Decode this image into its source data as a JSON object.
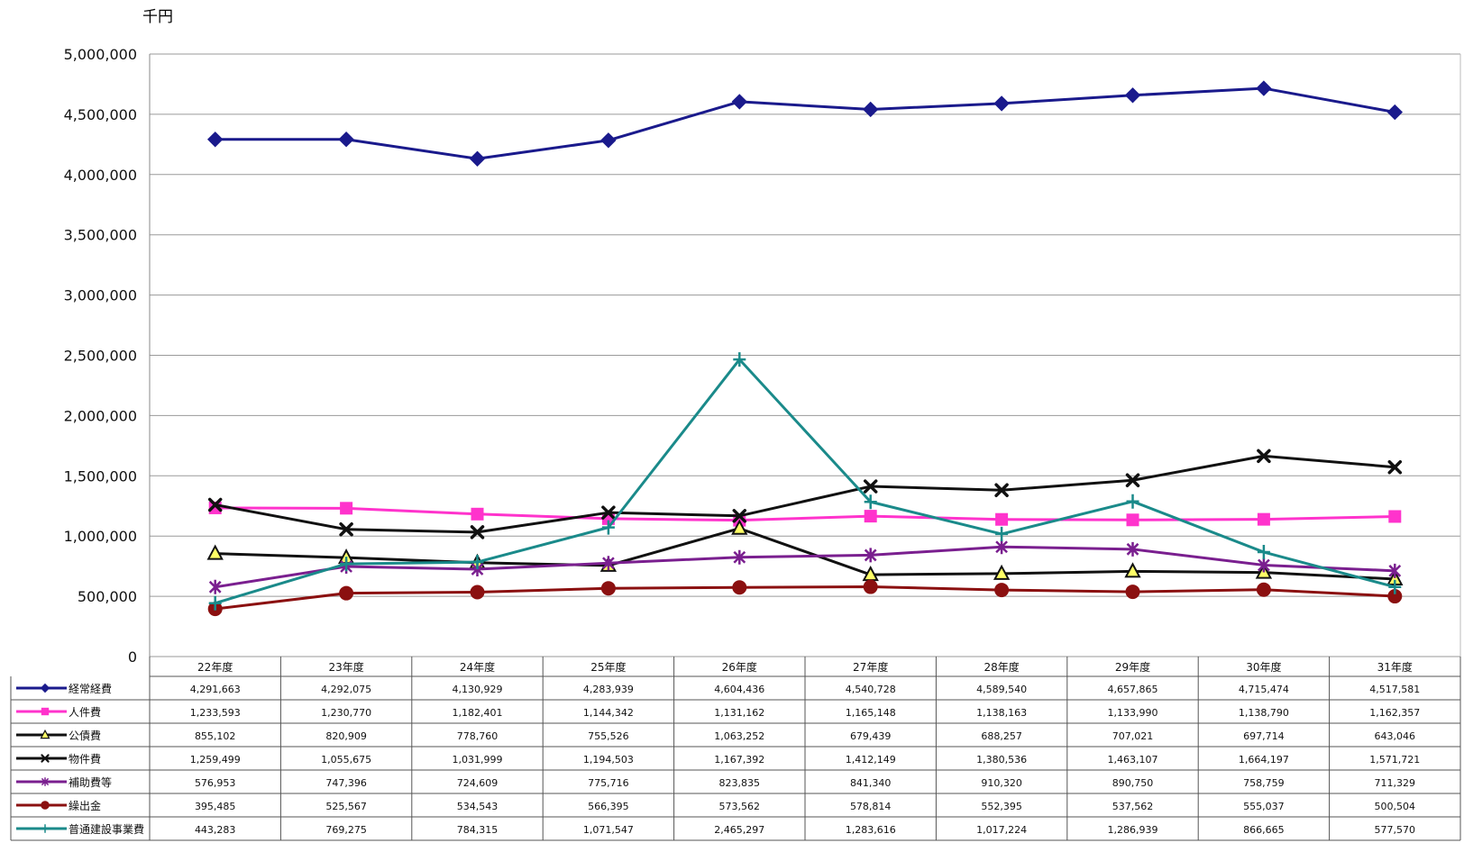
{
  "chart_data": {
    "type": "line",
    "unit_label": "千円",
    "ylim": [
      0,
      5000000
    ],
    "yticks": [
      0,
      500000,
      1000000,
      1500000,
      2000000,
      2500000,
      3000000,
      3500000,
      4000000,
      4500000,
      5000000
    ],
    "ytick_labels": [
      "0",
      "500,000",
      "1,000,000",
      "1,500,000",
      "2,000,000",
      "2,500,000",
      "3,000,000",
      "3,500,000",
      "4,000,000",
      "4,500,000",
      "5,000,000"
    ],
    "grid": true,
    "legend_placement": "data table below plot",
    "categories": [
      "22年度",
      "23年度",
      "24年度",
      "25年度",
      "26年度",
      "27年度",
      "28年度",
      "29年度",
      "30年度",
      "31年度"
    ],
    "series": [
      {
        "name": "経常経費",
        "color": "#1a1a8c",
        "marker": "diamond",
        "values": [
          4291663,
          4292075,
          4130929,
          4283939,
          4604436,
          4540728,
          4589540,
          4657865,
          4715474,
          4517581
        ],
        "labels": [
          "4,291,663",
          "4,292,075",
          "4,130,929",
          "4,283,939",
          "4,604,436",
          "4,540,728",
          "4,589,540",
          "4,657,865",
          "4,715,474",
          "4,517,581"
        ]
      },
      {
        "name": "人件費",
        "color": "#ff33cc",
        "marker": "square",
        "values": [
          1233593,
          1230770,
          1182401,
          1144342,
          1131162,
          1165148,
          1138163,
          1133990,
          1138790,
          1162357
        ],
        "labels": [
          "1,233,593",
          "1,230,770",
          "1,182,401",
          "1,144,342",
          "1,131,162",
          "1,165,148",
          "1,138,163",
          "1,133,990",
          "1,138,790",
          "1,162,357"
        ]
      },
      {
        "name": "公債費",
        "color": "#111111",
        "marker": "triangle",
        "values": [
          855102,
          820909,
          778760,
          755526,
          1063252,
          679439,
          688257,
          707021,
          697714,
          643046
        ],
        "labels": [
          "855,102",
          "820,909",
          "778,760",
          "755,526",
          "1,063,252",
          "679,439",
          "688,257",
          "707,021",
          "697,714",
          "643,046"
        ]
      },
      {
        "name": "物件費",
        "color": "#111111",
        "marker": "x",
        "values": [
          1259499,
          1055675,
          1031999,
          1194503,
          1167392,
          1412149,
          1380536,
          1463107,
          1664197,
          1571721
        ],
        "labels": [
          "1,259,499",
          "1,055,675",
          "1,031,999",
          "1,194,503",
          "1,167,392",
          "1,412,149",
          "1,380,536",
          "1,463,107",
          "1,664,197",
          "1,571,721"
        ]
      },
      {
        "name": "補助費等",
        "color": "#7a1f8f",
        "marker": "star",
        "values": [
          576953,
          747396,
          724609,
          775716,
          823835,
          841340,
          910320,
          890750,
          758759,
          711329
        ],
        "labels": [
          "576,953",
          "747,396",
          "724,609",
          "775,716",
          "823,835",
          "841,340",
          "910,320",
          "890,750",
          "758,759",
          "711,329"
        ]
      },
      {
        "name": "繰出金",
        "color": "#8b1010",
        "marker": "circle",
        "values": [
          395485,
          525567,
          534543,
          566395,
          573562,
          578814,
          552395,
          537562,
          555037,
          500504
        ],
        "labels": [
          "395,485",
          "525,567",
          "534,543",
          "566,395",
          "573,562",
          "578,814",
          "552,395",
          "537,562",
          "555,037",
          "500,504"
        ]
      },
      {
        "name": "普通建設事業費",
        "color": "#1a8a8a",
        "marker": "plus",
        "values": [
          443283,
          769275,
          784315,
          1071547,
          2465297,
          1283616,
          1017224,
          1286939,
          866665,
          577570
        ],
        "labels": [
          "443,283",
          "769,275",
          "784,315",
          "1,071,547",
          "2,465,297",
          "1,283,616",
          "1,017,224",
          "1,286,939",
          "866,665",
          "577,570"
        ]
      }
    ]
  }
}
